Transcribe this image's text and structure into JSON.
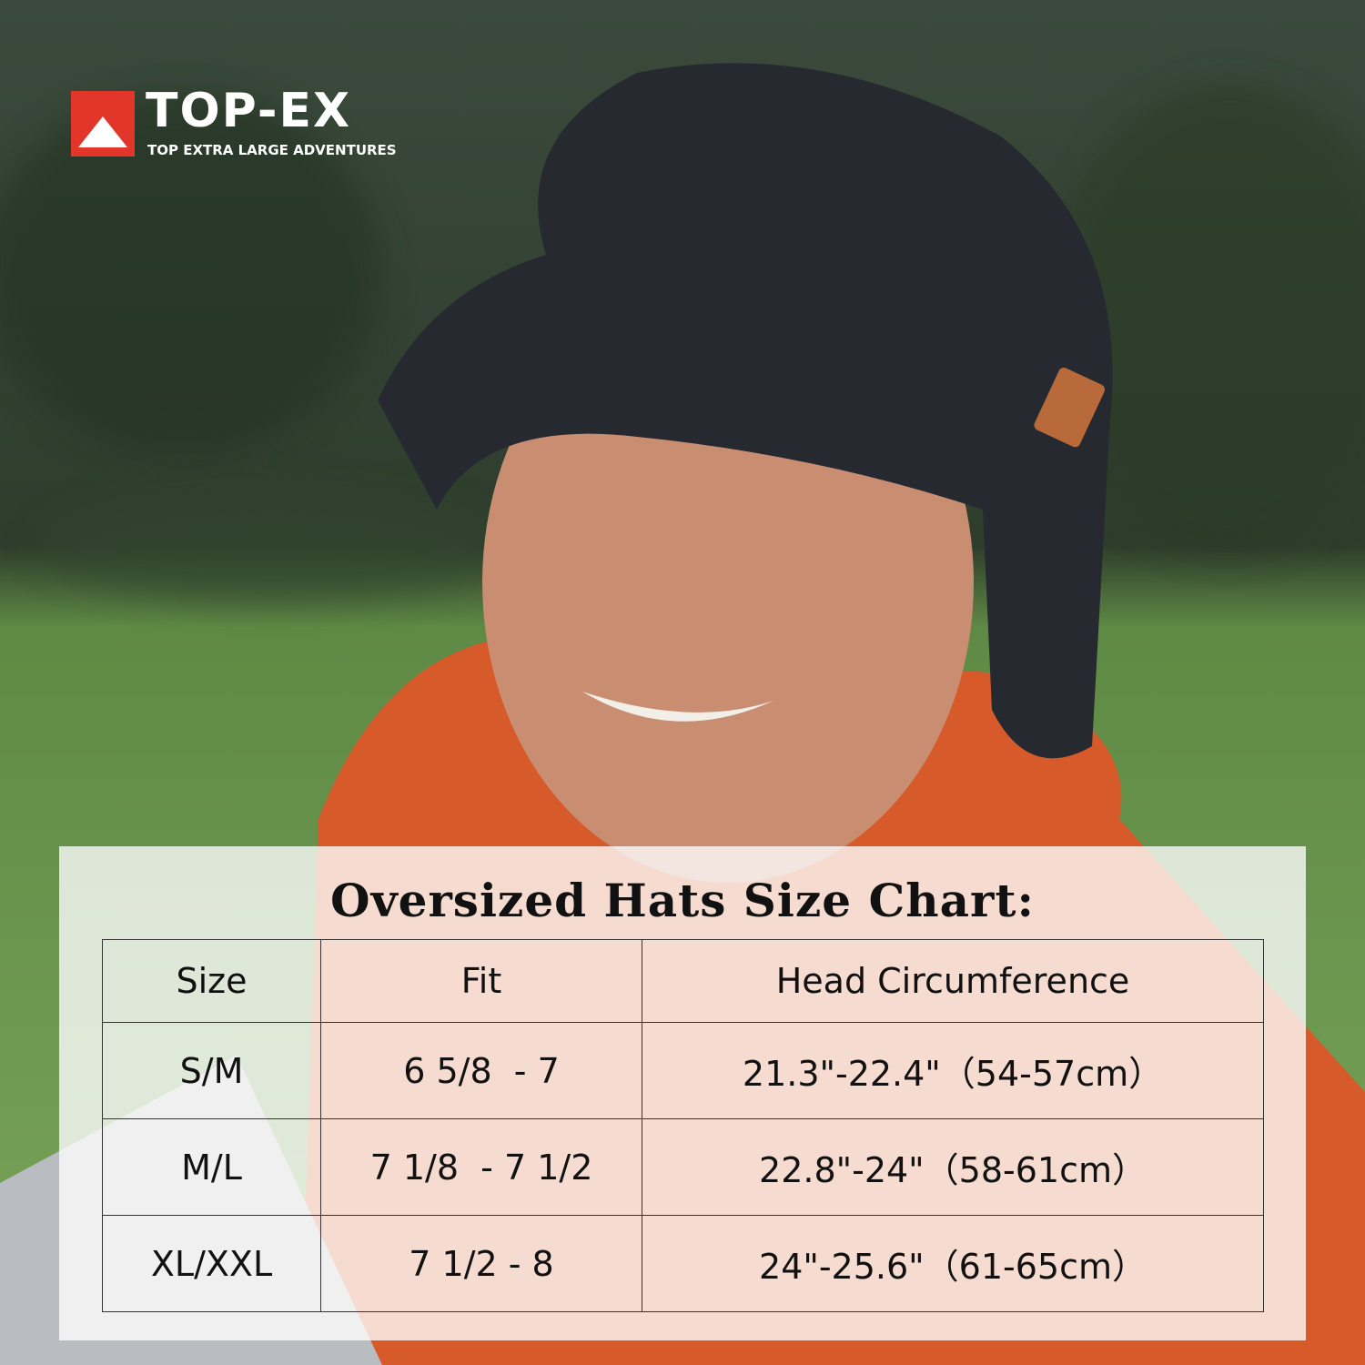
{
  "logo": {
    "brand": "TOP-EX",
    "tagline": "TOP EXTRA LARGE ADVENTURES"
  },
  "size_chart": {
    "title": "Oversized Hats Size Chart:",
    "table": {
      "header": [
        "Size",
        "Fit",
        "Head Circumference"
      ],
      "rows": [
        [
          "S/M",
          "6 5/8  - 7",
          "21.3\"-22.4\"（54-57cm）"
        ],
        [
          "M/L",
          "7 1/8  - 7 1/2",
          "22.8\"-24\"（58-61cm）"
        ],
        [
          "XL/XXL",
          "7 1/2 - 8",
          "24\"-25.6\"（61-65cm）"
        ]
      ]
    }
  }
}
